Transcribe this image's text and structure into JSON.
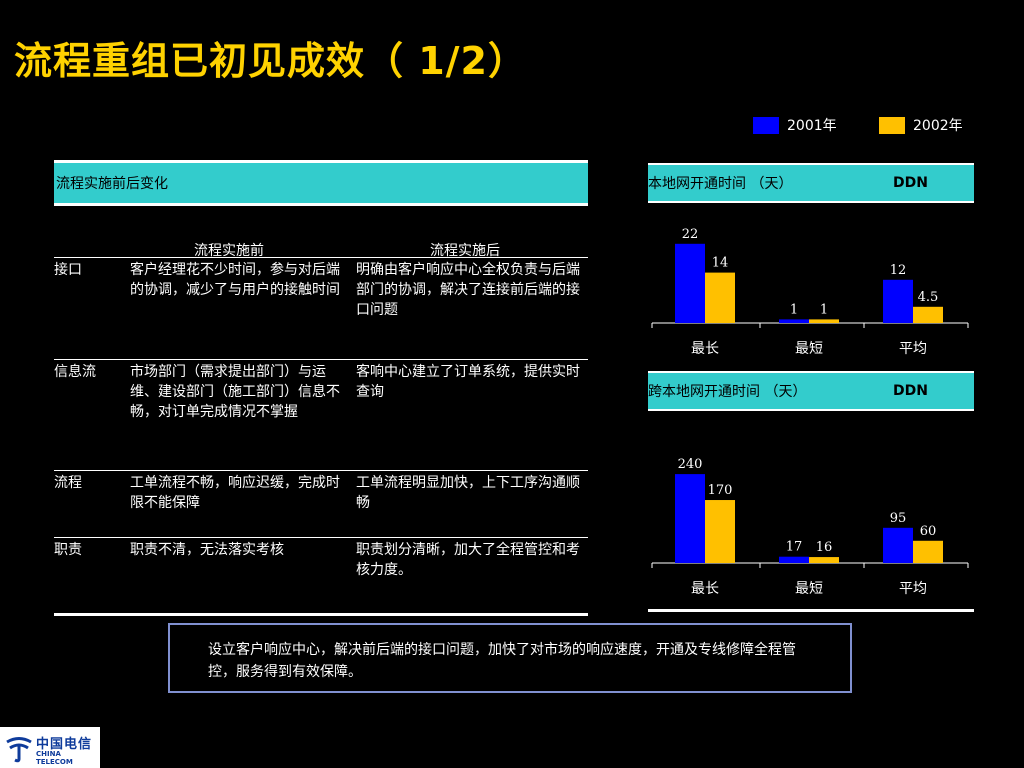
{
  "title": "流程重组已初见成效（ 1/2）",
  "legend": [
    {
      "label": "2001年",
      "color": "#0000ff"
    },
    {
      "label": "2002年",
      "color": "#ffc000"
    }
  ],
  "table": {
    "header": "流程实施前后变化",
    "col_before": "流程实施前",
    "col_after": "流程实施后",
    "rows": [
      {
        "key": "接口",
        "before": "客户经理花不少时间，参与对后端的协调，减少了与用户的接触时间",
        "after": "明确由客户响应中心全权负责与后端部门的协调，解决了连接前后端的接口问题"
      },
      {
        "key": "信息流",
        "before": "市场部门（需求提出部门）与运维、建设部门（施工部门）信息不畅，对订单完成情况不掌握",
        "after": "客响中心建立了订单系统，提供实时查询"
      },
      {
        "key": "流程",
        "before": "工单流程不畅，响应迟缓，完成时限不能保障",
        "after": "工单流程明显加快，上下工序沟通顺畅"
      },
      {
        "key": "职责",
        "before": "职责不清，无法落实考核",
        "after": "职责划分清晰，加大了全程管控和考核力度。"
      }
    ]
  },
  "chart_data": [
    {
      "type": "bar",
      "title": "本地网开通时间 （天）",
      "subtitle": "DDN",
      "categories": [
        "最长",
        "最短",
        "平均"
      ],
      "series": [
        {
          "name": "2001年",
          "values": [
            22,
            1,
            12
          ]
        },
        {
          "name": "2002年",
          "values": [
            14,
            1,
            4.5
          ]
        }
      ],
      "value_labels": [
        [
          "22",
          "1",
          "12"
        ],
        [
          "14",
          "1",
          "4.5"
        ]
      ],
      "ylim": [
        0,
        25
      ],
      "colors": [
        "#0000ff",
        "#ffc000"
      ]
    },
    {
      "type": "bar",
      "title": "跨本地网开通时间 （天）",
      "subtitle": "DDN",
      "categories": [
        "最长",
        "最短",
        "平均"
      ],
      "series": [
        {
          "name": "2001年",
          "values": [
            240,
            17,
            95
          ]
        },
        {
          "name": "2002年",
          "values": [
            170,
            16,
            60
          ]
        }
      ],
      "value_labels": [
        [
          "240",
          "17",
          "95"
        ],
        [
          "170",
          "16",
          "60"
        ]
      ],
      "ylim": [
        0,
        270
      ],
      "colors": [
        "#0000ff",
        "#ffc000"
      ]
    }
  ],
  "callout": "设立客户响应中心，解决前后端的接口问题，加快了对市场的响应速度，开通及专线修障全程管控，服务得到有效保障。",
  "logo": {
    "cn": "中国电信",
    "en": "CHINA TELECOM"
  }
}
